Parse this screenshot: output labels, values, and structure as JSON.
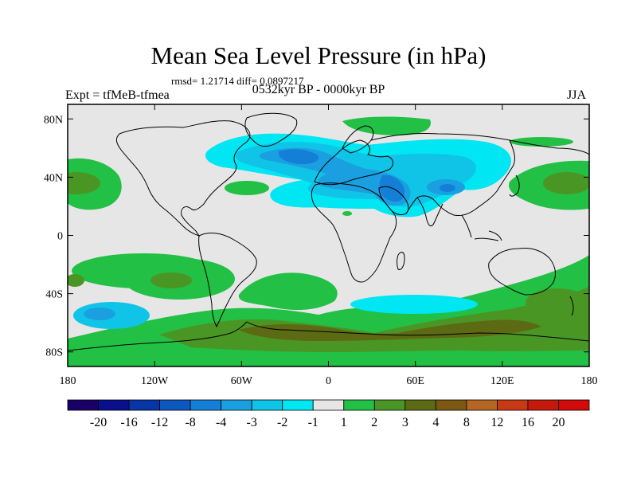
{
  "header": {
    "title": "Mean Sea Level Pressure (in hPa)",
    "stats": "rmsd= 1.21714 diff= 0.0897217",
    "left_label": "Expt = tfMeB-tfmea",
    "center_label": "0532kyr BP - 0000kyr BP",
    "right_label": "JJA"
  },
  "axes": {
    "lat_ticks": [
      "80N",
      "40N",
      "0",
      "40S",
      "80S"
    ],
    "lon_ticks": [
      "180",
      "120W",
      "60W",
      "0",
      "60E",
      "120E",
      "180"
    ]
  },
  "colorbar": {
    "colors": [
      "#1a0066",
      "#0a0f8c",
      "#0836a6",
      "#0d58bf",
      "#137fd6",
      "#1aa0e0",
      "#10c4e8",
      "#00e6f2",
      "#e6e6e6",
      "#22c045",
      "#4a9625",
      "#5b6a13",
      "#7d5812",
      "#b46622",
      "#c83a14",
      "#c41a0c",
      "#d20a0a"
    ],
    "labels": [
      "-20",
      "-16",
      "-12",
      "-8",
      "-4",
      "-3",
      "-2",
      "-1",
      "1",
      "2",
      "3",
      "4",
      "8",
      "12",
      "16",
      "20"
    ]
  },
  "legend_colors": {
    "missing": "#e6e6e6",
    "land_outline": "#000000"
  }
}
